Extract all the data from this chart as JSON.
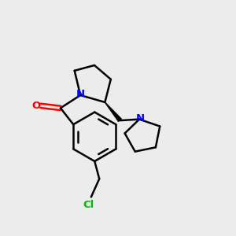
{
  "bg_color": "#ececec",
  "bond_color": "#000000",
  "N_color": "#0000ff",
  "O_color": "#ff0000",
  "Cl_color": "#00bb00",
  "line_width": 1.8,
  "font_size_atom": 9.5,
  "figsize": [
    3.0,
    3.0
  ],
  "dpi": 100,
  "xlim": [
    0,
    10
  ],
  "ylim": [
    0,
    10
  ]
}
